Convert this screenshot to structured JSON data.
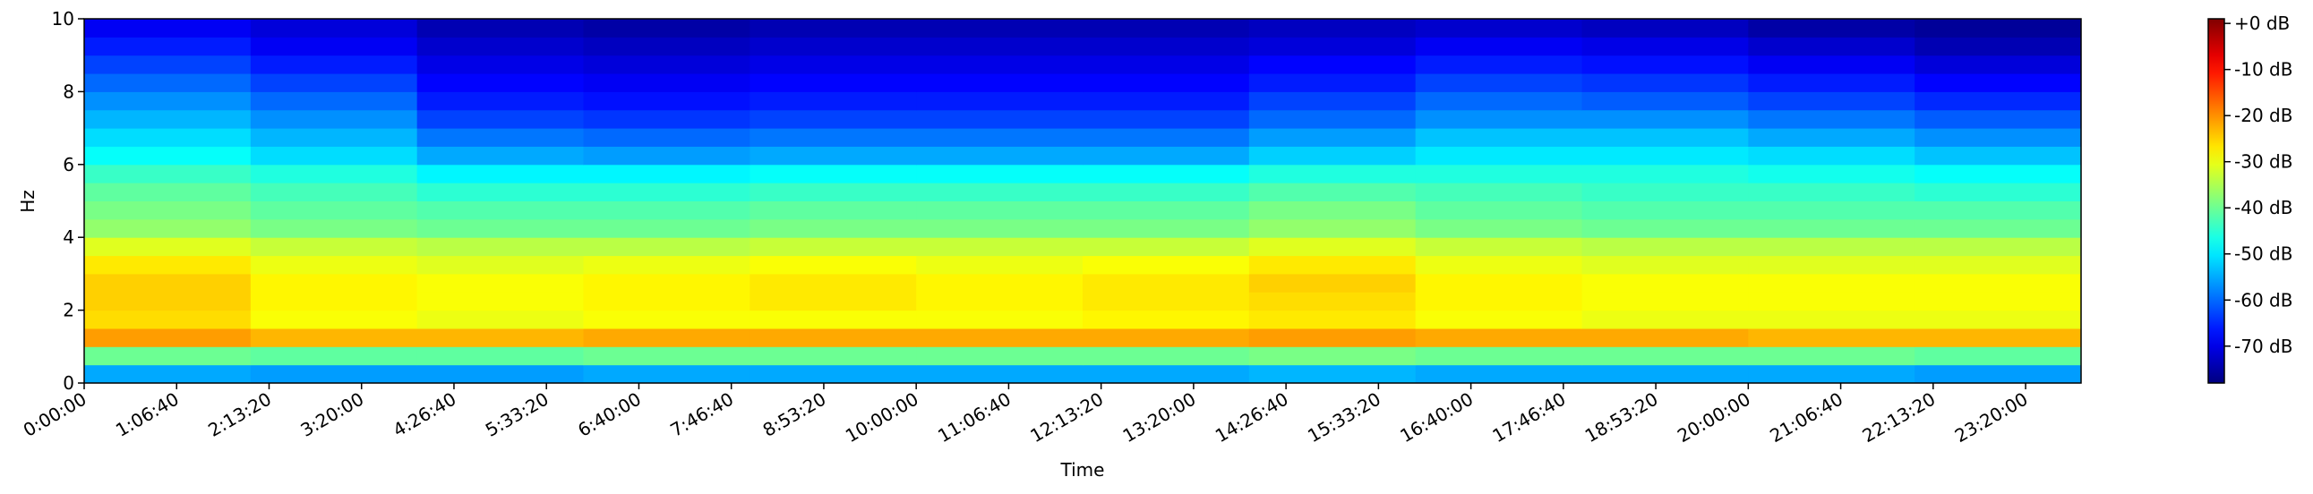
{
  "chart_data": {
    "type": "spectrogram",
    "xlabel": "Time",
    "ylabel": "Hz",
    "xbins": [
      0,
      7200,
      14400,
      21600,
      28800,
      36000,
      43200,
      50400,
      57600,
      64800,
      72000,
      79200,
      86400
    ],
    "ybins": [
      0,
      0.5,
      1,
      1.5,
      2,
      2.5,
      3,
      3.5,
      4,
      4.5,
      5,
      5.5,
      6,
      6.5,
      7,
      7.5,
      8,
      8.5,
      9,
      9.5,
      10
    ],
    "values": [
      [
        -55,
        -56,
        -56,
        -55,
        -55,
        -55,
        -55,
        -54,
        -55,
        -55,
        -55,
        -56
      ],
      [
        -40,
        -41,
        -41,
        -40,
        -40,
        -40,
        -40,
        -39,
        -40,
        -40,
        -40,
        -41
      ],
      [
        -21,
        -23,
        -23,
        -22,
        -22,
        -22,
        -22,
        -21,
        -22,
        -22,
        -23,
        -23
      ],
      [
        -26,
        -29,
        -30,
        -29,
        -29,
        -29,
        -28,
        -27,
        -29,
        -30,
        -30,
        -30
      ],
      [
        -25,
        -28,
        -29,
        -28,
        -27,
        -28,
        -27,
        -26,
        -28,
        -29,
        -29,
        -29
      ],
      [
        -25,
        -28,
        -29,
        -28,
        -27,
        -28,
        -27,
        -25,
        -28,
        -29,
        -29,
        -29
      ],
      [
        -27,
        -30,
        -31,
        -30,
        -29,
        -30,
        -29,
        -27,
        -30,
        -31,
        -31,
        -31
      ],
      [
        -31,
        -33,
        -34,
        -34,
        -33,
        -33,
        -33,
        -31,
        -33,
        -34,
        -34,
        -34
      ],
      [
        -37,
        -39,
        -40,
        -40,
        -39,
        -39,
        -39,
        -37,
        -39,
        -40,
        -40,
        -40
      ],
      [
        -39,
        -41,
        -42,
        -42,
        -41,
        -41,
        -41,
        -39,
        -41,
        -42,
        -42,
        -42
      ],
      [
        -41,
        -43,
        -45,
        -45,
        -44,
        -44,
        -44,
        -42,
        -43,
        -44,
        -44,
        -45
      ],
      [
        -44,
        -46,
        -49,
        -49,
        -48,
        -48,
        -48,
        -46,
        -46,
        -46,
        -47,
        -48
      ],
      [
        -48,
        -51,
        -55,
        -56,
        -55,
        -55,
        -55,
        -52,
        -50,
        -50,
        -51,
        -53
      ],
      [
        -51,
        -54,
        -59,
        -60,
        -59,
        -59,
        -59,
        -56,
        -53,
        -53,
        -55,
        -57
      ],
      [
        -54,
        -57,
        -63,
        -64,
        -63,
        -63,
        -63,
        -60,
        -57,
        -57,
        -59,
        -61
      ],
      [
        -57,
        -60,
        -66,
        -67,
        -66,
        -66,
        -66,
        -63,
        -60,
        -61,
        -63,
        -65
      ],
      [
        -60,
        -63,
        -68,
        -69,
        -68,
        -68,
        -68,
        -66,
        -63,
        -64,
        -66,
        -68
      ],
      [
        -63,
        -66,
        -70,
        -71,
        -70,
        -70,
        -70,
        -68,
        -66,
        -67,
        -69,
        -71
      ],
      [
        -66,
        -69,
        -72,
        -73,
        -72,
        -72,
        -72,
        -71,
        -69,
        -70,
        -72,
        -74
      ],
      [
        -69,
        -71,
        -74,
        -75,
        -74,
        -74,
        -74,
        -73,
        -72,
        -73,
        -75,
        -76
      ]
    ],
    "colormap": "jet",
    "clim": [
      -78,
      1
    ],
    "cticks": [
      {
        "value": 0,
        "label": "+0 dB"
      },
      {
        "value": -10,
        "label": "-10 dB"
      },
      {
        "value": -20,
        "label": "-20 dB"
      },
      {
        "value": -30,
        "label": "-30 dB"
      },
      {
        "value": -40,
        "label": "-40 dB"
      },
      {
        "value": -50,
        "label": "-50 dB"
      },
      {
        "value": -60,
        "label": "-60 dB"
      },
      {
        "value": -70,
        "label": "-70 dB"
      }
    ],
    "xlim": [
      0,
      86400
    ],
    "xticks": [
      {
        "value": 0,
        "label": "0:00:00"
      },
      {
        "value": 4000,
        "label": "1:06:40"
      },
      {
        "value": 8000,
        "label": "2:13:20"
      },
      {
        "value": 12000,
        "label": "3:20:00"
      },
      {
        "value": 16000,
        "label": "4:26:40"
      },
      {
        "value": 20000,
        "label": "5:33:20"
      },
      {
        "value": 24000,
        "label": "6:40:00"
      },
      {
        "value": 28000,
        "label": "7:46:40"
      },
      {
        "value": 32000,
        "label": "8:53:20"
      },
      {
        "value": 36000,
        "label": "10:00:00"
      },
      {
        "value": 40000,
        "label": "11:06:40"
      },
      {
        "value": 44000,
        "label": "12:13:20"
      },
      {
        "value": 48000,
        "label": "13:20:00"
      },
      {
        "value": 52000,
        "label": "14:26:40"
      },
      {
        "value": 56000,
        "label": "15:33:20"
      },
      {
        "value": 60000,
        "label": "16:40:00"
      },
      {
        "value": 64000,
        "label": "17:46:40"
      },
      {
        "value": 68000,
        "label": "18:53:20"
      },
      {
        "value": 72000,
        "label": "20:00:00"
      },
      {
        "value": 76000,
        "label": "21:06:40"
      },
      {
        "value": 80000,
        "label": "22:13:20"
      },
      {
        "value": 84000,
        "label": "23:20:00"
      }
    ],
    "ylim": [
      0,
      10
    ],
    "yticks": [
      0,
      2,
      4,
      6,
      8,
      10
    ]
  }
}
